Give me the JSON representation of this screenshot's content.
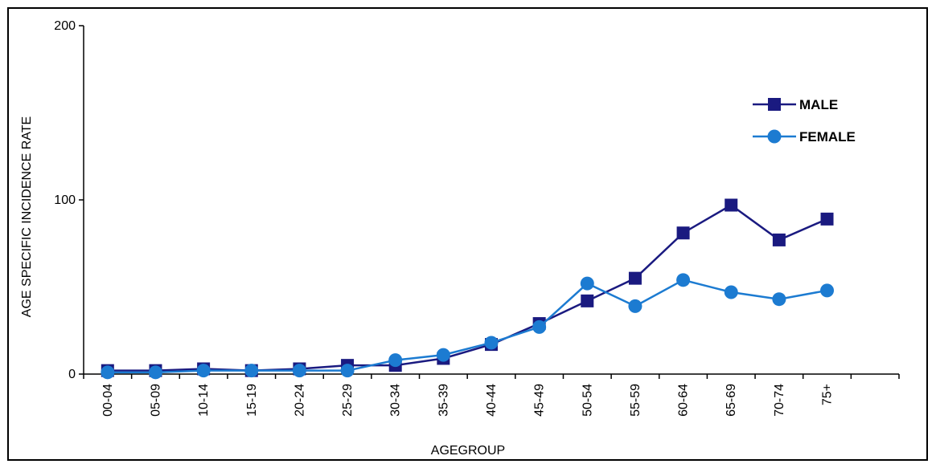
{
  "chart_data": {
    "type": "line",
    "xlabel": "AGEGROUP",
    "ylabel": "AGE SPECIFIC INCIDENCE RATE",
    "ylim": [
      0,
      200
    ],
    "yticks": [
      "0",
      "100",
      "200"
    ],
    "categories": [
      "00-04",
      "05-09",
      "10-14",
      "15-19",
      "20-24",
      "25-29",
      "30-34",
      "35-39",
      "40-44",
      "45-49",
      "50-54",
      "55-59",
      "60-64",
      "65-69",
      "70-74",
      "75+"
    ],
    "series": [
      {
        "name": "MALE",
        "color": "#1a1a80",
        "marker": "square",
        "values": [
          2,
          2,
          3,
          2,
          3,
          5,
          5,
          9,
          17,
          29,
          42,
          55,
          81,
          97,
          77,
          89
        ]
      },
      {
        "name": "FEMALE",
        "color": "#1c7bd1",
        "marker": "circle",
        "values": [
          1,
          1,
          2,
          2,
          2,
          2,
          8,
          11,
          18,
          27,
          52,
          39,
          54,
          47,
          43,
          48
        ]
      }
    ],
    "legend_position": "top-right",
    "grid": false
  }
}
